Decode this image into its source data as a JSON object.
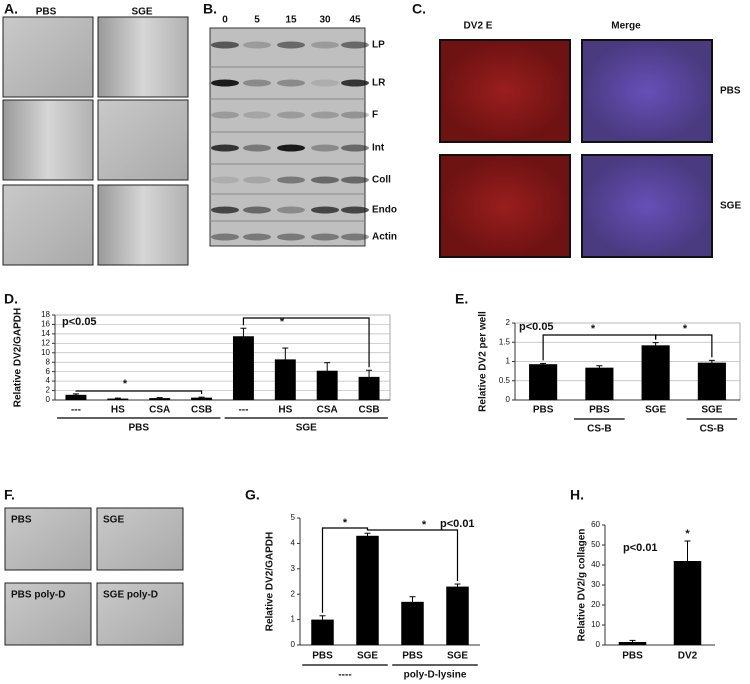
{
  "panels": {
    "A": {
      "label": "A.",
      "columns": [
        "PBS",
        "SGE"
      ]
    },
    "B": {
      "label": "B.",
      "lanes": [
        "0",
        "5",
        "15",
        "30",
        "45"
      ],
      "rows": [
        "LP",
        "LR",
        "F",
        "Int",
        "Coll",
        "Endo",
        "Actin"
      ]
    },
    "C": {
      "label": "C.",
      "columns": [
        "DV2 E",
        "Merge"
      ],
      "rows": [
        "PBS",
        "SGE"
      ]
    },
    "D": {
      "label": "D."
    },
    "E": {
      "label": "E."
    },
    "F": {
      "label": "F.",
      "tiles": [
        "PBS",
        "SGE",
        "PBS poly-D",
        "SGE poly-D"
      ]
    },
    "G": {
      "label": "G."
    },
    "H": {
      "label": "H."
    }
  },
  "chart_data": [
    {
      "type": "bar",
      "ylabel": "Relative DV2/GAPDH",
      "categories": [
        "---",
        "HS",
        "CSA",
        "CSB",
        "---",
        "HS",
        "CSA",
        "CSB"
      ],
      "values": [
        1.1,
        0.3,
        0.4,
        0.5,
        13.5,
        8.6,
        6.2,
        4.9
      ],
      "errors": [
        0.2,
        0.1,
        0.1,
        0.1,
        1.7,
        2.4,
        1.7,
        1.4
      ],
      "groups": [
        "PBS",
        "SGE"
      ],
      "annotations": [
        "p<0.05",
        "*",
        "*"
      ],
      "color": "#000000",
      "ylim": [
        0,
        18
      ],
      "yticks": [
        0,
        2,
        4,
        6,
        8,
        10,
        12,
        14,
        16,
        18
      ],
      "grid": true
    },
    {
      "type": "bar",
      "ylabel": "Relative DV2 per well",
      "categories": [
        "PBS",
        "PBS",
        "SGE",
        "SGE"
      ],
      "values": [
        0.93,
        0.84,
        1.42,
        0.97
      ],
      "errors": [
        0.02,
        0.05,
        0.07,
        0.06
      ],
      "groups": [
        "CS-B",
        "CS-B"
      ],
      "annotations": [
        "p<0.05",
        "*",
        "*"
      ],
      "color": "#000000",
      "ylim": [
        0,
        2
      ],
      "yticks": [
        0,
        0.5,
        1,
        1.5,
        2
      ],
      "grid": true
    },
    {
      "type": "bar",
      "ylabel": "Relative DV2/GAPDH",
      "categories": [
        "PBS",
        "SGE",
        "PBS",
        "SGE"
      ],
      "values": [
        1.0,
        4.3,
        1.7,
        2.3
      ],
      "errors": [
        0.15,
        0.1,
        0.2,
        0.1
      ],
      "groups": [
        "----",
        "poly-D-lysine"
      ],
      "annotations": [
        "*",
        "*",
        "p<0.01"
      ],
      "color": "#000000",
      "ylim": [
        0,
        5
      ],
      "yticks": [
        0,
        1,
        2,
        3,
        4,
        5
      ],
      "grid": false
    },
    {
      "type": "bar",
      "ylabel": "Relative DV2/g collagen",
      "categories": [
        "PBS",
        "DV2"
      ],
      "values": [
        1.5,
        42
      ],
      "errors": [
        0.8,
        10
      ],
      "annotations": [
        "p<0.01",
        "*"
      ],
      "color": "#000000",
      "ylim": [
        0,
        60
      ],
      "yticks": [
        0,
        10,
        20,
        30,
        40,
        50,
        60
      ],
      "grid": false
    }
  ]
}
